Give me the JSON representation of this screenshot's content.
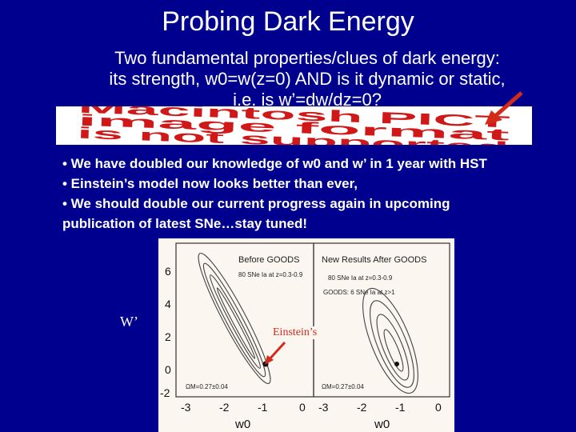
{
  "slide": {
    "title": "Probing Dark Energy",
    "intro_line1": "Two fundamental properties/clues of dark energy:",
    "intro_line2": "its strength, w0=w(z=0) AND is it dynamic or static,",
    "intro_line3": "i.e. is w’=dw/dz=0?",
    "pict_placeholder": [
      "Macintosh PICT",
      "image format",
      "is not supported"
    ],
    "bullets": [
      "• We have doubled our knowledge of w0 and w’ in 1 year with HST",
      "• Einstein’s model now looks better than ever,",
      "• We should double our current progress again in upcoming",
      "publication of latest SNe…stay tuned!"
    ],
    "w_prime_label": "W’",
    "einstein_label": "Einstein’s"
  },
  "plot": {
    "left_panel_title": "Before GOODS",
    "left_panel_sub": "80 SNe Ia at z=0.3-0.9",
    "right_panel_title": "New Results After GOODS",
    "right_panel_sub1": "80 SNe Ia at z=0.3-0.9",
    "right_panel_sub2": "GOODS: 6 SNe Ia at z>1",
    "omega_left": "ΩM=0.27±0.04",
    "omega_right": "ΩM=0.27±0.04",
    "y_ticks": [
      "6",
      "4",
      "2",
      "0",
      "-2"
    ],
    "x_ticks_left": [
      "-3",
      "-2",
      "-1",
      "0"
    ],
    "x_ticks_right": [
      "-3",
      "-2",
      "-1",
      "0"
    ],
    "x_label_left": "w0",
    "x_label_right": "w0",
    "colors": {
      "background": "#00008f",
      "arrow": "#d32a1a",
      "plot_bg": "#fbf6f0"
    }
  }
}
